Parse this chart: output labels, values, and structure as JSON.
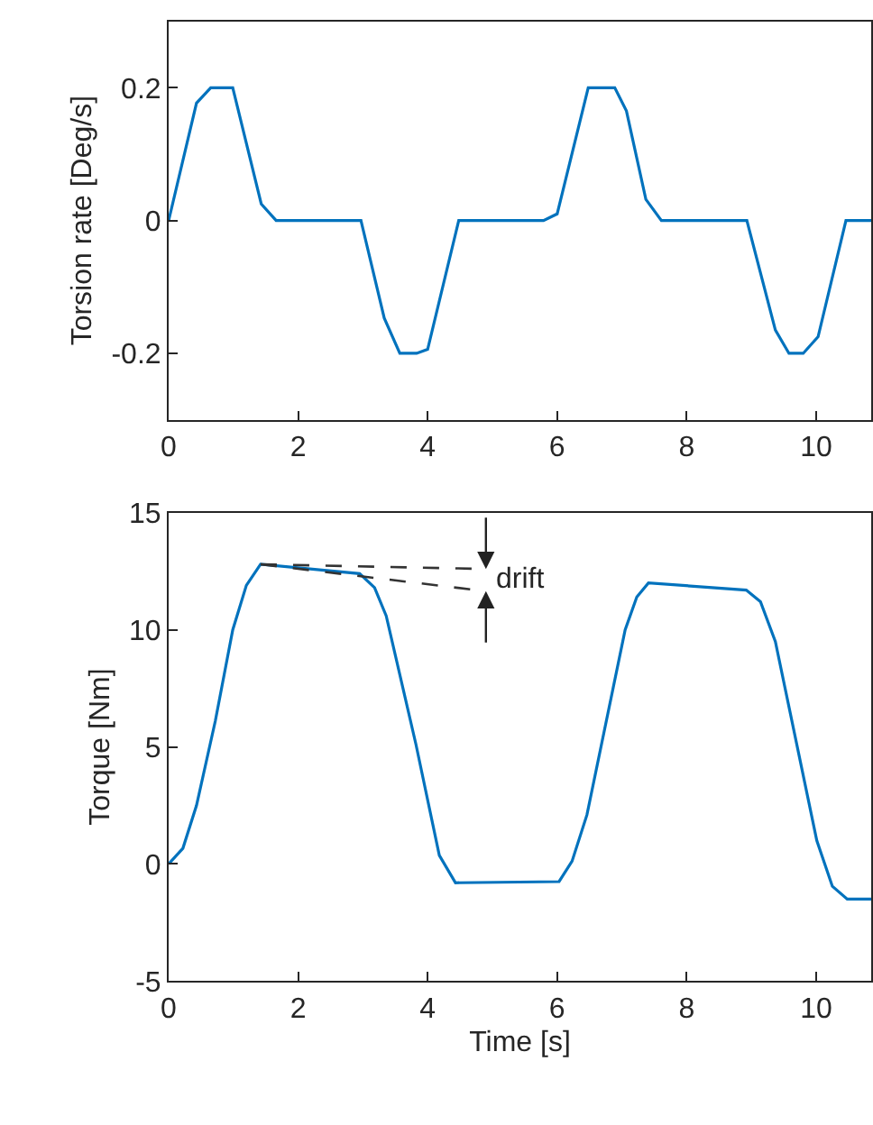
{
  "chart_data": [
    {
      "type": "line",
      "ylabel": "Torsion rate [Deg/s]",
      "xlim": [
        0,
        10.85
      ],
      "xticks": [
        0,
        2,
        4,
        6,
        8,
        10
      ],
      "ylim": [
        -0.3,
        0.3
      ],
      "yticks": [
        -0.2,
        0,
        0.2
      ],
      "series": [
        {
          "color": "#0072bd",
          "x": [
            0,
            0.43,
            0.65,
            0.99,
            1.43,
            1.66,
            2.97,
            3.33,
            3.57,
            3.83,
            4.0,
            4.48,
            5.79,
            6.0,
            6.48,
            6.89,
            7.07,
            7.37,
            7.61,
            8.93,
            9.37,
            9.58,
            9.8,
            10.03,
            10.46,
            10.85
          ],
          "values": [
            0,
            0.177,
            0.2,
            0.2,
            0.025,
            0,
            0,
            -0.147,
            -0.2,
            -0.2,
            -0.194,
            0,
            0,
            0.01,
            0.2,
            0.2,
            0.165,
            0.032,
            0,
            0,
            -0.165,
            -0.2,
            -0.2,
            -0.175,
            0,
            0
          ]
        }
      ]
    },
    {
      "type": "line",
      "xlabel": "Time [s]",
      "ylabel": "Torque [Nm]",
      "xlim": [
        0,
        10.85
      ],
      "xticks": [
        0,
        2,
        4,
        6,
        8,
        10
      ],
      "ylim": [
        -5,
        15
      ],
      "yticks": [
        -5,
        0,
        5,
        10,
        15
      ],
      "annotations": [
        "drift"
      ],
      "series": [
        {
          "color": "#0072bd",
          "x": [
            0,
            0.22,
            0.43,
            0.72,
            0.99,
            1.2,
            1.42,
            2.95,
            3.18,
            3.36,
            3.82,
            4.18,
            4.43,
            6.03,
            6.23,
            6.46,
            7.05,
            7.23,
            7.41,
            8.92,
            9.14,
            9.37,
            10.01,
            10.25,
            10.48,
            10.85
          ],
          "values": [
            0,
            0.67,
            2.5,
            6.1,
            10.0,
            11.9,
            12.8,
            12.4,
            11.8,
            10.6,
            5.1,
            0.37,
            -0.8,
            -0.75,
            0.12,
            2.1,
            10.0,
            11.4,
            12.0,
            11.7,
            11.2,
            9.5,
            1.0,
            -0.95,
            -1.5,
            -1.5
          ]
        },
        {
          "type": "line",
          "line_style": "dashed",
          "color": "#333333",
          "x": [
            1.42,
            4.9
          ],
          "values": [
            12.8,
            12.6
          ]
        },
        {
          "type": "line",
          "line_style": "dashed",
          "color": "#333333",
          "x": [
            1.42,
            4.9
          ],
          "values": [
            12.8,
            11.65
          ]
        }
      ]
    }
  ]
}
